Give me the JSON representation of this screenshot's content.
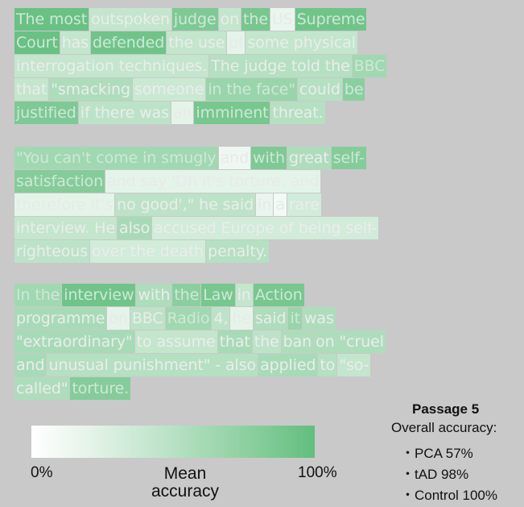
{
  "passages": [
    {
      "lines": [
        [
          [
            "The most",
            0.95
          ],
          [
            "outspoken",
            0.3
          ],
          [
            "judge",
            0.8
          ],
          [
            "on",
            0.3
          ],
          [
            "the",
            0.85
          ],
          [
            "US",
            0.1
          ],
          [
            "Supreme",
            0.9
          ]
        ],
        [
          [
            "Court",
            0.95
          ],
          [
            "has",
            0.3
          ],
          [
            "defended",
            0.9
          ],
          [
            "the use",
            0.3
          ],
          [
            "of",
            0.15
          ],
          [
            "some physical",
            0.3
          ]
        ],
        [
          [
            "interrogation techniques.",
            0.3
          ],
          [
            "The judge told the",
            0.4
          ],
          [
            "BBC",
            0.55
          ]
        ],
        [
          [
            "that",
            0.3
          ],
          [
            "\"smacking",
            0.45
          ],
          [
            "someone",
            0.25
          ],
          [
            "in the face\"",
            0.6
          ],
          [
            "could",
            0.4
          ],
          [
            "be",
            0.7
          ]
        ],
        [
          [
            "justified",
            0.8
          ],
          [
            "if there was",
            0.35
          ],
          [
            "an",
            0.15
          ],
          [
            "imminent",
            0.85
          ],
          [
            "threat.",
            0.4
          ]
        ]
      ]
    },
    {
      "lines": [
        [
          [
            "\"You can't come in smugly",
            0.55
          ],
          [
            "and",
            0.05
          ],
          [
            "with",
            0.8
          ],
          [
            "great",
            0.45
          ],
          [
            "self-",
            0.75
          ]
        ],
        [
          [
            "satisfaction",
            0.75
          ],
          [
            "and say 'Oh it's torture, and",
            0.15
          ]
        ],
        [
          [
            "therefore it's",
            0.15
          ],
          [
            "no good',\" he said",
            0.35
          ],
          [
            "in",
            0.1
          ],
          [
            "a",
            0.0
          ],
          [
            "rare",
            0.2
          ]
        ],
        [
          [
            "interview. He",
            0.3
          ],
          [
            "also",
            0.5
          ],
          [
            "accused Europe of being self-",
            0.2
          ]
        ],
        [
          [
            "righteous",
            0.35
          ],
          [
            "over the death",
            0.2
          ],
          [
            "penalty.",
            0.4
          ]
        ]
      ]
    },
    {
      "lines": [
        [
          [
            "In the",
            0.55
          ],
          [
            "interview",
            0.9
          ],
          [
            "with",
            0.45
          ],
          [
            "the",
            0.7
          ],
          [
            "Law",
            0.85
          ],
          [
            "in",
            0.3
          ],
          [
            "Action",
            0.85
          ]
        ],
        [
          [
            "programme",
            0.5
          ],
          [
            "on",
            0.15
          ],
          [
            "BBC",
            0.35
          ],
          [
            "Radio",
            0.55
          ],
          [
            "4,",
            0.35
          ],
          [
            "he",
            0.15
          ],
          [
            "said",
            0.45
          ],
          [
            "it",
            0.6
          ],
          [
            "was",
            0.45
          ]
        ],
        [
          [
            "\"extraordinary\"",
            0.5
          ],
          [
            "to assume",
            0.3
          ],
          [
            "that",
            0.5
          ],
          [
            "the",
            0.35
          ],
          [
            "ban",
            0.45
          ],
          [
            "on \"cruel",
            0.45
          ]
        ],
        [
          [
            "and",
            0.5
          ],
          [
            "unusual punishment\" - also",
            0.4
          ],
          [
            "applied",
            0.5
          ],
          [
            "to",
            0.4
          ],
          [
            "\"so-",
            0.3
          ]
        ],
        [
          [
            "called\"",
            0.45
          ],
          [
            "torture.",
            0.75
          ]
        ]
      ]
    }
  ],
  "colorbar": {
    "min_label": "0%",
    "max_label": "100%",
    "title": "Mean accuracy",
    "low_color": "#ffffff",
    "high_color": "#62be7e"
  },
  "summary": {
    "title": "Passage 5",
    "subtitle": "Overall accuracy:",
    "items": [
      "・PCA 57%",
      "・tAD 98%",
      "・Control 100%"
    ]
  }
}
